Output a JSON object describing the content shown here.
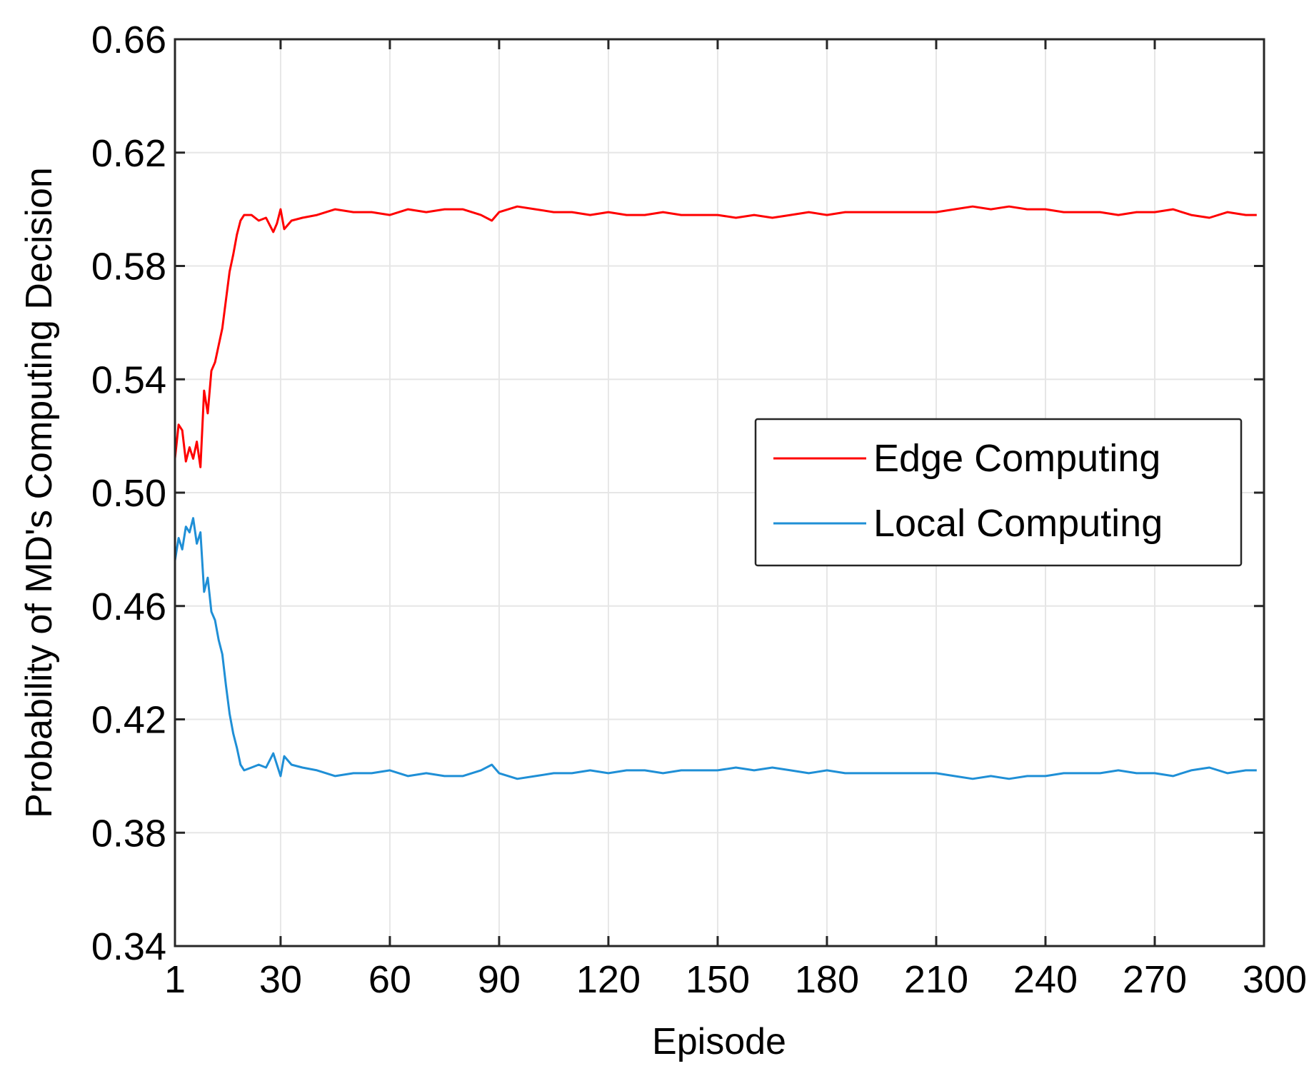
{
  "chart_data": {
    "type": "line",
    "title": "",
    "xlabel": "Episode",
    "ylabel": "Probability of MD's Computing Decision",
    "xlim": [
      1,
      300
    ],
    "ylim": [
      0.34,
      0.66
    ],
    "x_ticks": [
      1,
      30,
      60,
      90,
      120,
      150,
      180,
      210,
      240,
      270,
      300
    ],
    "x_tick_labels": [
      "1",
      "30",
      "60",
      "90",
      "120",
      "150",
      "180",
      "210",
      "240",
      "270",
      "300"
    ],
    "y_ticks": [
      0.34,
      0.38,
      0.42,
      0.46,
      0.5,
      0.54,
      0.58,
      0.62,
      0.66
    ],
    "y_tick_labels": [
      "0.34",
      "0.38",
      "0.42",
      "0.46",
      "0.50",
      "0.54",
      "0.58",
      "0.62",
      "0.66"
    ],
    "grid": true,
    "legend_position": "right",
    "series": [
      {
        "name": "Edge Computing",
        "color": "#ff0000",
        "points": [
          [
            1,
            0.512
          ],
          [
            2,
            0.524
          ],
          [
            3,
            0.522
          ],
          [
            4,
            0.511
          ],
          [
            5,
            0.516
          ],
          [
            6,
            0.512
          ],
          [
            7,
            0.518
          ],
          [
            8,
            0.509
          ],
          [
            9,
            0.536
          ],
          [
            10,
            0.528
          ],
          [
            11,
            0.543
          ],
          [
            12,
            0.546
          ],
          [
            13,
            0.552
          ],
          [
            14,
            0.558
          ],
          [
            15,
            0.568
          ],
          [
            16,
            0.578
          ],
          [
            17,
            0.584
          ],
          [
            18,
            0.591
          ],
          [
            19,
            0.596
          ],
          [
            20,
            0.598
          ],
          [
            22,
            0.598
          ],
          [
            24,
            0.596
          ],
          [
            26,
            0.597
          ],
          [
            28,
            0.592
          ],
          [
            29,
            0.595
          ],
          [
            30,
            0.6
          ],
          [
            31,
            0.593
          ],
          [
            33,
            0.596
          ],
          [
            36,
            0.597
          ],
          [
            40,
            0.598
          ],
          [
            45,
            0.6
          ],
          [
            50,
            0.599
          ],
          [
            55,
            0.599
          ],
          [
            60,
            0.598
          ],
          [
            65,
            0.6
          ],
          [
            70,
            0.599
          ],
          [
            75,
            0.6
          ],
          [
            80,
            0.6
          ],
          [
            85,
            0.598
          ],
          [
            88,
            0.596
          ],
          [
            90,
            0.599
          ],
          [
            95,
            0.601
          ],
          [
            100,
            0.6
          ],
          [
            105,
            0.599
          ],
          [
            110,
            0.599
          ],
          [
            115,
            0.598
          ],
          [
            120,
            0.599
          ],
          [
            125,
            0.598
          ],
          [
            130,
            0.598
          ],
          [
            135,
            0.599
          ],
          [
            140,
            0.598
          ],
          [
            145,
            0.598
          ],
          [
            150,
            0.598
          ],
          [
            155,
            0.597
          ],
          [
            160,
            0.598
          ],
          [
            165,
            0.597
          ],
          [
            170,
            0.598
          ],
          [
            175,
            0.599
          ],
          [
            180,
            0.598
          ],
          [
            185,
            0.599
          ],
          [
            190,
            0.599
          ],
          [
            195,
            0.599
          ],
          [
            200,
            0.599
          ],
          [
            205,
            0.599
          ],
          [
            210,
            0.599
          ],
          [
            215,
            0.6
          ],
          [
            220,
            0.601
          ],
          [
            225,
            0.6
          ],
          [
            230,
            0.601
          ],
          [
            235,
            0.6
          ],
          [
            240,
            0.6
          ],
          [
            245,
            0.599
          ],
          [
            250,
            0.599
          ],
          [
            255,
            0.599
          ],
          [
            260,
            0.598
          ],
          [
            265,
            0.599
          ],
          [
            270,
            0.599
          ],
          [
            275,
            0.6
          ],
          [
            280,
            0.598
          ],
          [
            285,
            0.597
          ],
          [
            290,
            0.599
          ],
          [
            295,
            0.598
          ],
          [
            298,
            0.598
          ]
        ]
      },
      {
        "name": "Local Computing",
        "color": "#1f8fd6",
        "points": [
          [
            1,
            0.476
          ],
          [
            2,
            0.484
          ],
          [
            3,
            0.48
          ],
          [
            4,
            0.488
          ],
          [
            5,
            0.486
          ],
          [
            6,
            0.491
          ],
          [
            7,
            0.482
          ],
          [
            8,
            0.486
          ],
          [
            9,
            0.465
          ],
          [
            10,
            0.47
          ],
          [
            11,
            0.458
          ],
          [
            12,
            0.455
          ],
          [
            13,
            0.448
          ],
          [
            14,
            0.443
          ],
          [
            15,
            0.432
          ],
          [
            16,
            0.422
          ],
          [
            17,
            0.415
          ],
          [
            18,
            0.41
          ],
          [
            19,
            0.404
          ],
          [
            20,
            0.402
          ],
          [
            22,
            0.403
          ],
          [
            24,
            0.404
          ],
          [
            26,
            0.403
          ],
          [
            28,
            0.408
          ],
          [
            29,
            0.404
          ],
          [
            30,
            0.4
          ],
          [
            31,
            0.407
          ],
          [
            33,
            0.404
          ],
          [
            36,
            0.403
          ],
          [
            40,
            0.402
          ],
          [
            45,
            0.4
          ],
          [
            50,
            0.401
          ],
          [
            55,
            0.401
          ],
          [
            60,
            0.402
          ],
          [
            65,
            0.4
          ],
          [
            70,
            0.401
          ],
          [
            75,
            0.4
          ],
          [
            80,
            0.4
          ],
          [
            85,
            0.402
          ],
          [
            88,
            0.404
          ],
          [
            90,
            0.401
          ],
          [
            95,
            0.399
          ],
          [
            100,
            0.4
          ],
          [
            105,
            0.401
          ],
          [
            110,
            0.401
          ],
          [
            115,
            0.402
          ],
          [
            120,
            0.401
          ],
          [
            125,
            0.402
          ],
          [
            130,
            0.402
          ],
          [
            135,
            0.401
          ],
          [
            140,
            0.402
          ],
          [
            145,
            0.402
          ],
          [
            150,
            0.402
          ],
          [
            155,
            0.403
          ],
          [
            160,
            0.402
          ],
          [
            165,
            0.403
          ],
          [
            170,
            0.402
          ],
          [
            175,
            0.401
          ],
          [
            180,
            0.402
          ],
          [
            185,
            0.401
          ],
          [
            190,
            0.401
          ],
          [
            195,
            0.401
          ],
          [
            200,
            0.401
          ],
          [
            205,
            0.401
          ],
          [
            210,
            0.401
          ],
          [
            215,
            0.4
          ],
          [
            220,
            0.399
          ],
          [
            225,
            0.4
          ],
          [
            230,
            0.399
          ],
          [
            235,
            0.4
          ],
          [
            240,
            0.4
          ],
          [
            245,
            0.401
          ],
          [
            250,
            0.401
          ],
          [
            255,
            0.401
          ],
          [
            260,
            0.402
          ],
          [
            265,
            0.401
          ],
          [
            270,
            0.401
          ],
          [
            275,
            0.4
          ],
          [
            280,
            0.402
          ],
          [
            285,
            0.403
          ],
          [
            290,
            0.401
          ],
          [
            295,
            0.402
          ],
          [
            298,
            0.402
          ]
        ]
      }
    ]
  }
}
